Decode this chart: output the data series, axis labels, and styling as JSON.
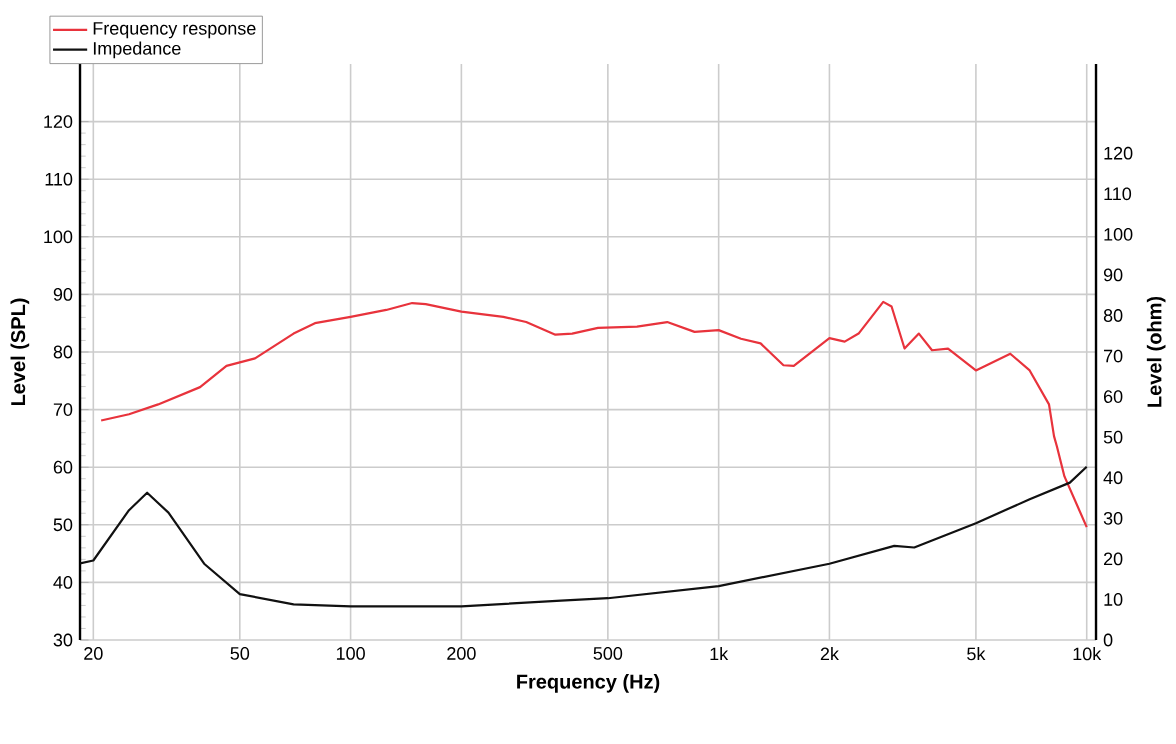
{
  "chart_data": {
    "type": "line",
    "xlabel": "Frequency (Hz)",
    "ylabel": "Level (SPL)",
    "y2label": "Level (ohm)",
    "log": "x",
    "grid": true,
    "legend": "top left",
    "marker": "none",
    "line_style": "solid",
    "xlim": [
      18.4,
      10600
    ],
    "xticks": [
      20,
      50,
      100,
      200,
      500,
      {
        "value": 1000,
        "label": "1k"
      },
      {
        "value": 2000,
        "label": "2k"
      },
      {
        "value": 5000,
        "label": "5k"
      },
      {
        "value": 10000,
        "label": "10k"
      }
    ],
    "ylim": [
      30,
      130
    ],
    "yticks": [
      30,
      40,
      50,
      60,
      70,
      80,
      90,
      100,
      110,
      120
    ],
    "y2lim": [
      0,
      142
    ],
    "y2ticks": [
      0,
      10,
      20,
      30,
      40,
      50,
      60,
      70,
      80,
      90,
      100,
      110,
      120
    ],
    "series": [
      {
        "name": "Frequency response",
        "color": "#e8333c",
        "x": [
          21,
          25,
          30,
          39,
          46,
          50,
          55,
          70,
          80,
          100,
          125,
          147,
          160,
          200,
          260,
          300,
          360,
          400,
          470,
          600,
          725,
          860,
          1000,
          1150,
          1300,
          1500,
          1600,
          2000,
          2200,
          2400,
          2800,
          2950,
          3200,
          3500,
          3800,
          4200,
          5000,
          6200,
          7000,
          7900,
          8150,
          8300,
          8700,
          10000
        ],
        "values": [
          68.1,
          69.2,
          70.9,
          73.9,
          77.6,
          78.2,
          78.9,
          83.2,
          85,
          86.1,
          87.3,
          88.5,
          88.3,
          87,
          86.1,
          85.2,
          83,
          83.2,
          84.2,
          84.4,
          85.2,
          83.5,
          83.8,
          82.3,
          81.5,
          77.7,
          77.6,
          82.4,
          81.8,
          83.2,
          88.7,
          87.9,
          80.6,
          83.2,
          80.3,
          80.6,
          76.8,
          79.7,
          76.8,
          70.9,
          65.4,
          63.6,
          58.4,
          49.6
        ]
      },
      {
        "name": "Impedance",
        "color": "#111111",
        "axis": "y2",
        "x": [
          18.4,
          20,
          25,
          28,
          32,
          40,
          50,
          70,
          100,
          200,
          373,
          500,
          1000,
          2000,
          3000,
          3400,
          5000,
          7000,
          9000,
          10000
        ],
        "values": [
          18.9,
          19.6,
          32,
          36.3,
          31.4,
          18.8,
          11.3,
          8.8,
          8.3,
          8.3,
          9.7,
          10.3,
          13.3,
          18.8,
          23.2,
          22.8,
          28.8,
          34.7,
          38.8,
          42.7
        ]
      }
    ]
  }
}
